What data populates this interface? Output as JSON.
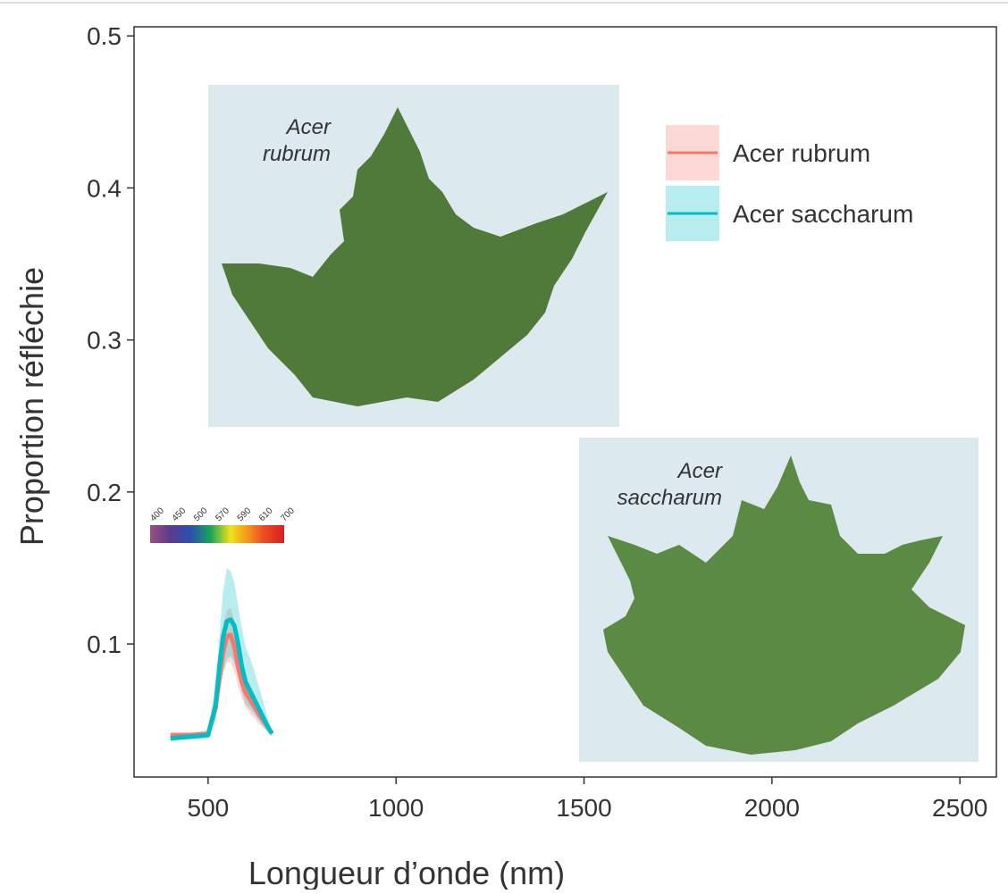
{
  "chart_data": {
    "type": "line",
    "x_label": "Longueur d’onde (nm)",
    "y_label": "Proportion réfléchie",
    "xlim": [
      303,
      2597
    ],
    "ylim": [
      0.0125,
      0.506
    ],
    "xticks": [
      500,
      1000,
      1500,
      2000,
      2500
    ],
    "yticks": [
      0.1,
      0.2,
      0.3,
      0.4,
      0.5
    ],
    "legend_position": "top-right",
    "x": [
      400,
      450,
      500,
      520,
      530,
      540,
      550,
      560,
      570,
      580,
      590,
      600,
      620,
      640,
      660,
      670
    ],
    "series": [
      {
        "name": "Acer rubrum",
        "color": "#f8766d",
        "values": [
          0.04,
          0.04,
          0.041,
          0.058,
          0.078,
          0.095,
          0.105,
          0.106,
          0.098,
          0.085,
          0.075,
          0.068,
          0.06,
          0.052,
          0.045,
          0.041
        ],
        "lower": [
          0.038,
          0.038,
          0.039,
          0.05,
          0.066,
          0.08,
          0.088,
          0.088,
          0.082,
          0.072,
          0.064,
          0.058,
          0.052,
          0.046,
          0.042,
          0.039
        ],
        "upper": [
          0.042,
          0.042,
          0.043,
          0.066,
          0.092,
          0.112,
          0.122,
          0.124,
          0.115,
          0.1,
          0.088,
          0.078,
          0.068,
          0.058,
          0.048,
          0.043
        ]
      },
      {
        "name": "Acer saccharum",
        "color": "#00bfc4",
        "values": [
          0.038,
          0.039,
          0.04,
          0.06,
          0.085,
          0.105,
          0.115,
          0.116,
          0.112,
          0.1,
          0.085,
          0.075,
          0.065,
          0.055,
          0.045,
          0.041
        ],
        "lower": [
          0.036,
          0.037,
          0.038,
          0.05,
          0.068,
          0.082,
          0.09,
          0.092,
          0.088,
          0.078,
          0.068,
          0.06,
          0.055,
          0.048,
          0.042,
          0.039
        ],
        "upper": [
          0.04,
          0.041,
          0.042,
          0.072,
          0.105,
          0.135,
          0.15,
          0.148,
          0.14,
          0.125,
          0.11,
          0.098,
          0.085,
          0.068,
          0.05,
          0.043
        ]
      }
    ],
    "colorbar_ticks": [
      400,
      450,
      500,
      570,
      590,
      610,
      700
    ],
    "insets": [
      {
        "label_lines": [
          "Acer",
          "rubrum"
        ]
      },
      {
        "label_lines": [
          "Acer",
          "saccharum"
        ]
      }
    ]
  }
}
